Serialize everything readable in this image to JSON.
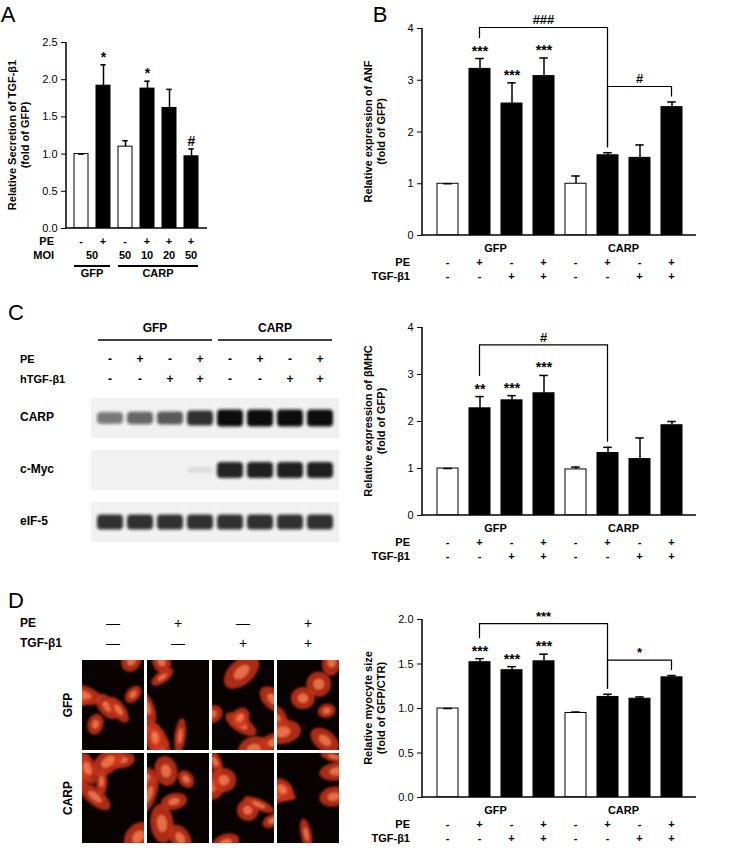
{
  "chart_data": [
    {
      "type": "bar",
      "panel": "A",
      "ylabel": "Relative Secretion of TGF-β1 (fold of GFP)",
      "values": [
        1.0,
        1.92,
        1.1,
        1.88,
        1.62,
        0.97
      ],
      "errors": [
        0,
        0.28,
        0.08,
        0.1,
        0.25,
        0.1
      ],
      "colors": [
        "#ffffff",
        "#000000",
        "#ffffff",
        "#000000",
        "#000000",
        "#000000"
      ],
      "ylim": [
        0,
        2.5
      ],
      "yticks": [
        {
          "value": 0,
          "label": "0.0"
        },
        0.5,
        {
          "value": 1,
          "label": "1.0"
        },
        1.5,
        {
          "value": 2,
          "label": "2.0"
        },
        2.5
      ],
      "annotations": [
        {
          "index": 1,
          "text": "*"
        },
        {
          "index": 3,
          "text": "*"
        },
        {
          "index": 5,
          "text": "#"
        }
      ],
      "brackets": [],
      "x_rows": [
        {
          "label": "PE",
          "values": [
            "-",
            "+",
            "-",
            "+",
            "+",
            "+"
          ]
        },
        {
          "label": "MOI",
          "spans": [
            {
              "text": 50,
              "from": 0,
              "to": 1
            },
            {
              "text": 50,
              "from": 2,
              "to": 2
            },
            {
              "text": 10,
              "from": 3,
              "to": 3
            },
            {
              "text": 20,
              "from": 4,
              "to": 4
            },
            {
              "text": 50,
              "from": 5,
              "to": 5
            }
          ]
        },
        {
          "spans": [
            {
              "text": "GFP",
              "from": 0,
              "to": 1
            },
            {
              "text": "CARP",
              "from": 2,
              "to": 5
            }
          ]
        }
      ]
    },
    {
      "type": "bar",
      "panel": "B",
      "ylabel": "Relative expression of ANF (fold of GFP)",
      "values": [
        1.0,
        3.22,
        2.55,
        3.08,
        1.0,
        1.55,
        1.5,
        2.48
      ],
      "errors": [
        0,
        0.2,
        0.4,
        0.35,
        0.15,
        0.05,
        0.25,
        0.1
      ],
      "colors": [
        "#ffffff",
        "#000000",
        "#000000",
        "#000000",
        "#ffffff",
        "#000000",
        "#000000",
        "#000000"
      ],
      "ylim": [
        0,
        4
      ],
      "yticks": [
        0,
        1,
        2,
        3,
        4
      ],
      "annotations": [
        {
          "index": 1,
          "text": "***"
        },
        {
          "index": 2,
          "text": "***"
        },
        {
          "index": 3,
          "text": "***"
        }
      ],
      "brackets": [
        {
          "from": 1,
          "to": 5,
          "text": "###"
        },
        {
          "from": 5,
          "to": 7,
          "text": "#"
        }
      ],
      "x_rows": [
        {
          "spans": [
            {
              "text": "GFP",
              "from": 0,
              "to": 3
            },
            {
              "text": "CARP",
              "from": 4,
              "to": 7
            }
          ]
        },
        {
          "label": "PE",
          "values": [
            "-",
            "+",
            "-",
            "+",
            "-",
            "+",
            "-",
            "+"
          ]
        },
        {
          "label": "TGF-β1",
          "values": [
            "-",
            "-",
            "+",
            "+",
            "-",
            "-",
            "+",
            "+"
          ]
        }
      ]
    },
    {
      "type": "blot",
      "panel": "C",
      "groups": [
        {
          "text": "GFP",
          "from": 0,
          "to": 3
        },
        {
          "text": "CARP",
          "from": 4,
          "to": 7
        }
      ],
      "conditions": [
        {
          "label": "PE",
          "values": [
            "-",
            "+",
            "-",
            "+",
            "-",
            "+",
            "-",
            "+"
          ]
        },
        {
          "label": "hTGF-β1",
          "values": [
            "-",
            "-",
            "+",
            "+",
            "-",
            "-",
            "+",
            "+"
          ]
        }
      ],
      "bands": [
        {
          "label": "CARP",
          "intensity": [
            0.55,
            0.62,
            0.68,
            0.85,
            1,
            1,
            1,
            1
          ]
        },
        {
          "label": "c-Myc",
          "intensity": [
            0,
            0,
            0,
            0.08,
            0.9,
            0.92,
            0.92,
            0.92
          ]
        },
        {
          "label": "eIF-5",
          "intensity": [
            0.85,
            0.85,
            0.85,
            0.85,
            0.85,
            0.85,
            0.85,
            0.85
          ]
        }
      ]
    },
    {
      "type": "bar",
      "ylabel": "Relative expression of βMHC (fold of GFP)",
      "values": [
        1.0,
        2.28,
        2.45,
        2.6,
        0.98,
        1.33,
        1.2,
        1.92
      ],
      "errors": [
        0,
        0.25,
        0.1,
        0.38,
        0.05,
        0.12,
        0.45,
        0.08
      ],
      "colors": [
        "#ffffff",
        "#000000",
        "#000000",
        "#000000",
        "#ffffff",
        "#000000",
        "#000000",
        "#000000"
      ],
      "ylim": [
        0,
        4
      ],
      "yticks": [
        0,
        1,
        2,
        3,
        4
      ],
      "annotations": [
        {
          "index": 1,
          "text": "**"
        },
        {
          "index": 2,
          "text": "***"
        },
        {
          "index": 3,
          "text": "***"
        }
      ],
      "brackets": [
        {
          "from": 1,
          "to": 5,
          "text": "#"
        }
      ],
      "x_rows": [
        {
          "spans": [
            {
              "text": "GFP",
              "from": 0,
              "to": 3
            },
            {
              "text": "CARP",
              "from": 4,
              "to": 7
            }
          ]
        },
        {
          "label": "PE",
          "values": [
            "-",
            "+",
            "-",
            "+",
            "-",
            "+",
            "-",
            "+"
          ]
        },
        {
          "label": "TGF-β1",
          "values": [
            "-",
            "-",
            "+",
            "+",
            "-",
            "-",
            "+",
            "+"
          ]
        }
      ]
    },
    {
      "type": "image",
      "panel": "D",
      "conditions": [
        {
          "label": "PE",
          "values": [
            "—",
            "+",
            "—",
            "+"
          ]
        },
        {
          "label": "TGF-β1",
          "values": [
            "—",
            "—",
            "+",
            "+"
          ]
        }
      ],
      "rows": [
        "GFP",
        "CARP"
      ]
    },
    {
      "type": "bar",
      "ylabel": "Relative myocyte size (fold of GFP/CTR)",
      "values": [
        1.0,
        1.52,
        1.43,
        1.53,
        0.95,
        1.13,
        1.11,
        1.35
      ],
      "errors": [
        0,
        0.04,
        0.04,
        0.08,
        0.01,
        0.03,
        0.02,
        0.02
      ],
      "colors": [
        "#ffffff",
        "#000000",
        "#000000",
        "#000000",
        "#ffffff",
        "#000000",
        "#000000",
        "#000000"
      ],
      "ylim": [
        0,
        2
      ],
      "yticks": [
        {
          "value": 0,
          "label": "0.0"
        },
        0.5,
        {
          "value": 1,
          "label": "1.0"
        },
        1.5,
        {
          "value": 2,
          "label": "2.0"
        }
      ],
      "annotations": [
        {
          "index": 1,
          "text": "***"
        },
        {
          "index": 2,
          "text": "***"
        },
        {
          "index": 3,
          "text": "***"
        }
      ],
      "brackets": [
        {
          "from": 1,
          "to": 5,
          "text": "***"
        },
        {
          "from": 5,
          "to": 7,
          "text": "*"
        }
      ],
      "x_rows": [
        {
          "spans": [
            {
              "text": "GFP",
              "from": 0,
              "to": 3
            },
            {
              "text": "CARP",
              "from": 4,
              "to": 7
            }
          ]
        },
        {
          "label": "PE",
          "values": [
            "-",
            "+",
            "-",
            "+",
            "-",
            "+",
            "-",
            "+"
          ]
        },
        {
          "label": "TGF-β1",
          "values": [
            "-",
            "-",
            "+",
            "+",
            "-",
            "-",
            "+",
            "+"
          ]
        }
      ]
    }
  ]
}
